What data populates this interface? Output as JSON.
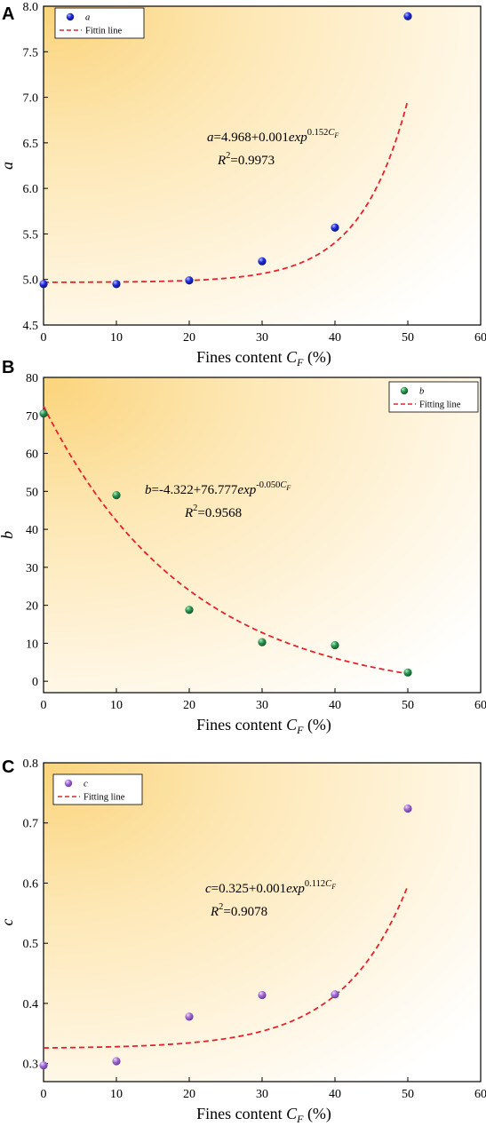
{
  "chart_data": [
    {
      "type": "scatter",
      "panel": "A",
      "xlabel": "Fines content",
      "xlabel_symbol": "C",
      "xlabel_sub": "F",
      "xlabel_unit": "(%)",
      "ylabel": "a",
      "xlim": [
        0,
        60
      ],
      "ylim": [
        4.5,
        8.0
      ],
      "xticks": [
        0,
        10,
        20,
        30,
        40,
        50,
        60
      ],
      "yticks": [
        4.5,
        5.0,
        5.5,
        6.0,
        6.5,
        7.0,
        7.5,
        8.0
      ],
      "ytick_labels": [
        "4.5",
        "5.0",
        "5.5",
        "6.0",
        "6.5",
        "7.0",
        "7.5",
        "8.0"
      ],
      "series": [
        {
          "name": "a",
          "x": [
            0,
            10,
            20,
            30,
            40,
            50
          ],
          "y": [
            4.95,
            4.95,
            4.99,
            5.2,
            5.57,
            7.89
          ],
          "color": "#1f2fe0"
        }
      ],
      "fit": {
        "name": "Fittin line",
        "y0": 4.968,
        "A": 0.001,
        "k": 0.152,
        "x_range": [
          0,
          50
        ],
        "color": "#e8202a"
      },
      "equation": {
        "lhs": "a",
        "body": "=4.968+0.001",
        "exp": "exp",
        "power": "0.152",
        "power_sym": "C",
        "power_sub": "F"
      },
      "r2": {
        "lhs": "R",
        "sup": "2",
        "value": "=0.9973"
      },
      "legend": "top-left"
    },
    {
      "type": "scatter",
      "panel": "B",
      "xlabel": "Fines content",
      "xlabel_symbol": "C",
      "xlabel_sub": "F",
      "xlabel_unit": "(%)",
      "ylabel": "b",
      "xlim": [
        0,
        60
      ],
      "ylim": [
        -3,
        80
      ],
      "xticks": [
        0,
        10,
        20,
        30,
        40,
        50,
        60
      ],
      "yticks": [
        0,
        10,
        20,
        30,
        40,
        50,
        60,
        70,
        80
      ],
      "ytick_labels": [
        "0",
        "10",
        "20",
        "30",
        "40",
        "50",
        "60",
        "70",
        "80"
      ],
      "series": [
        {
          "name": "b",
          "x": [
            0,
            10,
            20,
            30,
            40,
            50
          ],
          "y": [
            70.5,
            49,
            18.8,
            10.3,
            9.5,
            2.3
          ],
          "color": "#2e9a55"
        }
      ],
      "fit": {
        "name": "Fitting line",
        "y0": -4.322,
        "A": 76.777,
        "k": -0.05,
        "x_range": [
          0,
          50
        ],
        "color": "#e8202a"
      },
      "equation": {
        "lhs": "b",
        "body": "=-4.322+76.777",
        "exp": "exp",
        "power": "-0.050",
        "power_sym": "C",
        "power_sub": "F"
      },
      "r2": {
        "lhs": "R",
        "sup": "2",
        "value": "=0.9568"
      },
      "legend": "top-right"
    },
    {
      "type": "scatter",
      "panel": "C",
      "xlabel": "Fines content",
      "xlabel_symbol": "C",
      "xlabel_sub": "F",
      "xlabel_unit": "(%)",
      "ylabel": "c",
      "xlim": [
        0,
        60
      ],
      "ylim": [
        0.27,
        0.8
      ],
      "xticks": [
        0,
        10,
        20,
        30,
        40,
        50,
        60
      ],
      "yticks": [
        0.3,
        0.4,
        0.5,
        0.6,
        0.7,
        0.8
      ],
      "ytick_labels": [
        "0.3",
        "0.4",
        "0.5",
        "0.6",
        "0.7",
        "0.8"
      ],
      "series": [
        {
          "name": "c",
          "x": [
            0,
            10,
            20,
            30,
            40,
            50
          ],
          "y": [
            0.297,
            0.304,
            0.378,
            0.414,
            0.415,
            0.724
          ],
          "color": "#a66fd6"
        }
      ],
      "fit": {
        "name": "Fitting line",
        "y0": 0.325,
        "A": 0.001,
        "k": 0.112,
        "x_range": [
          0,
          50
        ],
        "color": "#e8202a"
      },
      "equation": {
        "lhs": "c",
        "body": "=0.325+0.001",
        "exp": "exp",
        "power": "0.112",
        "power_sym": "C",
        "power_sub": "F"
      },
      "r2": {
        "lhs": "R",
        "sup": "2",
        "value": "=0.9078"
      },
      "legend": "top-left"
    }
  ],
  "colors": {
    "gradient_warm": "#fbd57e",
    "gradient_light": "#ffffff",
    "fit_line": "#e8202a"
  }
}
